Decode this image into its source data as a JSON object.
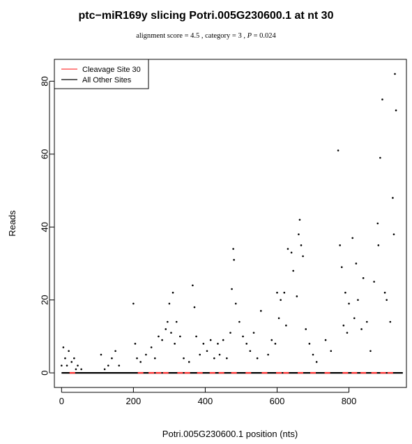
{
  "chart_data": {
    "type": "scatter",
    "title": "ptc−miR169y slicing Potri.005G230600.1 at nt 30",
    "subtitle": {
      "prefix": "alignment score = 4.5 , category = 3 , ",
      "p_label": "P",
      "p_value": " = 0.024"
    },
    "xlabel": "Potri.005G230600.1 position (nts)",
    "ylabel": "Reads",
    "xlim": [
      -20,
      960
    ],
    "ylim": [
      -4,
      86
    ],
    "xticks": [
      0,
      200,
      400,
      600,
      800
    ],
    "yticks": [
      0,
      20,
      40,
      60,
      80
    ],
    "grid": false,
    "legend_position": "top-left",
    "series": [
      {
        "name": "Cleavage Site 30",
        "color": "#ff3b3b",
        "points": [
          [
            30,
            0
          ],
          [
            220,
            0
          ],
          [
            250,
            0
          ],
          [
            270,
            0
          ],
          [
            290,
            0
          ],
          [
            330,
            0
          ],
          [
            350,
            0
          ],
          [
            385,
            0
          ],
          [
            420,
            0
          ],
          [
            445,
            0
          ],
          [
            480,
            0
          ],
          [
            520,
            0
          ],
          [
            565,
            0
          ],
          [
            605,
            0
          ],
          [
            625,
            0
          ],
          [
            665,
            0
          ],
          [
            700,
            0
          ],
          [
            740,
            0
          ],
          [
            790,
            0
          ],
          [
            815,
            0
          ],
          [
            840,
            0
          ],
          [
            870,
            0
          ],
          [
            895,
            0
          ],
          [
            915,
            0
          ]
        ]
      },
      {
        "name": "All Other Sites",
        "color": "#000000",
        "points": [
          [
            0,
            2
          ],
          [
            5,
            7
          ],
          [
            10,
            4
          ],
          [
            15,
            2
          ],
          [
            20,
            6
          ],
          [
            28,
            3
          ],
          [
            35,
            4
          ],
          [
            40,
            1
          ],
          [
            45,
            2
          ],
          [
            55,
            1
          ],
          [
            110,
            5
          ],
          [
            120,
            1
          ],
          [
            130,
            2
          ],
          [
            140,
            4
          ],
          [
            150,
            6
          ],
          [
            160,
            2
          ],
          [
            200,
            19
          ],
          [
            205,
            8
          ],
          [
            210,
            4
          ],
          [
            220,
            3
          ],
          [
            235,
            5
          ],
          [
            250,
            7
          ],
          [
            260,
            4
          ],
          [
            270,
            10
          ],
          [
            280,
            9
          ],
          [
            290,
            12
          ],
          [
            295,
            14
          ],
          [
            300,
            19
          ],
          [
            305,
            11
          ],
          [
            310,
            22
          ],
          [
            315,
            8
          ],
          [
            320,
            14
          ],
          [
            330,
            10
          ],
          [
            340,
            4
          ],
          [
            355,
            3
          ],
          [
            365,
            24
          ],
          [
            370,
            18
          ],
          [
            375,
            10
          ],
          [
            385,
            5
          ],
          [
            395,
            8
          ],
          [
            405,
            6
          ],
          [
            415,
            9
          ],
          [
            425,
            4
          ],
          [
            435,
            8
          ],
          [
            440,
            5
          ],
          [
            450,
            9
          ],
          [
            460,
            4
          ],
          [
            470,
            11
          ],
          [
            474,
            23
          ],
          [
            478,
            34
          ],
          [
            480,
            31
          ],
          [
            485,
            19
          ],
          [
            495,
            14
          ],
          [
            505,
            10
          ],
          [
            515,
            8
          ],
          [
            525,
            6
          ],
          [
            535,
            11
          ],
          [
            545,
            4
          ],
          [
            555,
            17
          ],
          [
            575,
            5
          ],
          [
            585,
            9
          ],
          [
            595,
            8
          ],
          [
            600,
            22
          ],
          [
            605,
            15
          ],
          [
            610,
            20
          ],
          [
            620,
            22
          ],
          [
            625,
            13
          ],
          [
            630,
            34
          ],
          [
            640,
            33
          ],
          [
            645,
            28
          ],
          [
            655,
            21
          ],
          [
            660,
            38
          ],
          [
            663,
            42
          ],
          [
            667,
            35
          ],
          [
            672,
            32
          ],
          [
            680,
            12
          ],
          [
            690,
            8
          ],
          [
            700,
            5
          ],
          [
            710,
            3
          ],
          [
            735,
            9
          ],
          [
            750,
            6
          ],
          [
            770,
            61
          ],
          [
            775,
            35
          ],
          [
            780,
            29
          ],
          [
            785,
            13
          ],
          [
            790,
            22
          ],
          [
            795,
            11
          ],
          [
            800,
            19
          ],
          [
            810,
            37
          ],
          [
            815,
            15
          ],
          [
            820,
            30
          ],
          [
            825,
            20
          ],
          [
            835,
            12
          ],
          [
            840,
            26
          ],
          [
            850,
            14
          ],
          [
            860,
            6
          ],
          [
            870,
            25
          ],
          [
            880,
            41
          ],
          [
            882,
            35
          ],
          [
            887,
            59
          ],
          [
            893,
            75
          ],
          [
            900,
            22
          ],
          [
            905,
            20
          ],
          [
            915,
            14
          ],
          [
            922,
            48
          ],
          [
            925,
            38
          ],
          [
            928,
            82
          ],
          [
            931,
            72
          ]
        ]
      }
    ]
  }
}
